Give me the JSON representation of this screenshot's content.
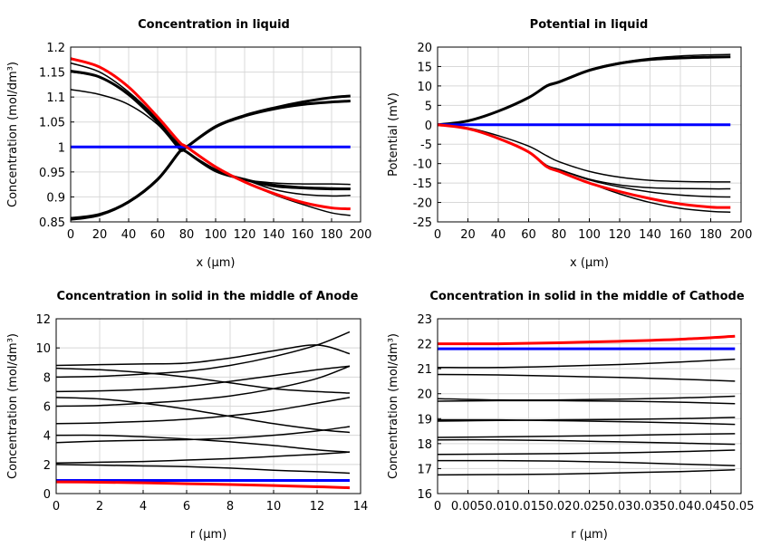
{
  "chart_data": [
    {
      "type": "line",
      "title": "Concentration in liquid",
      "xlabel": "x (µm)",
      "ylabel": "Concentration (mol/dm³)",
      "xlim": [
        0,
        200
      ],
      "ylim": [
        0.85,
        1.2
      ],
      "grid": true,
      "xticks": [
        "0",
        "20",
        "40",
        "60",
        "80",
        "100",
        "120",
        "140",
        "160",
        "180",
        "200"
      ],
      "yticks": [
        "0.85",
        "0.9",
        "0.95",
        "1",
        "1.05",
        "1.1",
        "1.15",
        "1.2"
      ],
      "x": [
        0,
        20,
        40,
        60,
        75,
        80,
        100,
        120,
        140,
        160,
        180,
        193
      ],
      "series": [
        {
          "color": "#000000",
          "values": [
            0.857,
            0.865,
            0.89,
            0.935,
            0.99,
            1.0,
            1.04,
            1.062,
            1.076,
            1.085,
            1.09,
            1.092
          ]
        },
        {
          "color": "#000000",
          "values": [
            0.855,
            0.864,
            0.89,
            0.935,
            0.99,
            1.0,
            1.041,
            1.063,
            1.078,
            1.09,
            1.099,
            1.102
          ]
        },
        {
          "color": "#000000",
          "values": [
            1.178,
            1.16,
            1.12,
            1.06,
            1.005,
            0.99,
            0.955,
            0.935,
            0.928,
            0.926,
            0.926,
            0.925
          ]
        },
        {
          "color": "#000000",
          "values": [
            1.168,
            1.15,
            1.11,
            1.055,
            1.0,
            0.99,
            0.955,
            0.935,
            0.925,
            0.92,
            0.918,
            0.917
          ]
        },
        {
          "color": "#000000",
          "values": [
            1.152,
            1.14,
            1.105,
            1.05,
            1.0,
            0.99,
            0.952,
            0.935,
            0.922,
            0.918,
            0.916,
            0.916
          ]
        },
        {
          "color": "#000000",
          "values": [
            1.115,
            1.105,
            1.085,
            1.045,
            0.995,
            0.99,
            0.955,
            0.935,
            0.915,
            0.905,
            0.902,
            0.903
          ]
        },
        {
          "color": "#000000",
          "values": [
            1.15,
            1.14,
            1.105,
            1.05,
            1.0,
            0.99,
            0.955,
            0.93,
            0.905,
            0.885,
            0.868,
            0.863
          ]
        },
        {
          "color": "#0000ff",
          "values": [
            1,
            1,
            1,
            1,
            1,
            1,
            1,
            1,
            1,
            1,
            1,
            1
          ]
        },
        {
          "color": "#ff0000",
          "values": [
            1.177,
            1.16,
            1.12,
            1.06,
            1.01,
            1.0,
            0.96,
            0.93,
            0.907,
            0.889,
            0.878,
            0.876
          ]
        }
      ]
    },
    {
      "type": "line",
      "title": "Potential in liquid",
      "xlabel": "x (µm)",
      "ylabel": "Potential (mV)",
      "xlim": [
        0,
        200
      ],
      "ylim": [
        -25,
        20
      ],
      "grid": true,
      "xticks": [
        "0",
        "20",
        "40",
        "60",
        "80",
        "100",
        "120",
        "140",
        "160",
        "180",
        "200"
      ],
      "yticks": [
        "-25",
        "-20",
        "-15",
        "-10",
        "-5",
        "0",
        "5",
        "10",
        "15",
        "20"
      ],
      "x": [
        0,
        20,
        40,
        60,
        72,
        80,
        100,
        120,
        140,
        160,
        180,
        193
      ],
      "series": [
        {
          "color": "#000000",
          "values": [
            0,
            1,
            3.5,
            7,
            10,
            11,
            14,
            15.8,
            16.8,
            17.2,
            17.4,
            17.5
          ]
        },
        {
          "color": "#000000",
          "values": [
            0,
            1,
            3.5,
            7,
            10.2,
            11.2,
            14.2,
            16,
            17.1,
            17.7,
            18,
            18.1
          ]
        },
        {
          "color": "#000000",
          "values": [
            0,
            -0.8,
            -2.8,
            -5.5,
            -8,
            -9.5,
            -12,
            -13.5,
            -14.3,
            -14.6,
            -14.7,
            -14.7
          ]
        },
        {
          "color": "#000000",
          "values": [
            0,
            -1,
            -3.5,
            -7,
            -10.5,
            -11.5,
            -14,
            -15.5,
            -16.2,
            -16.4,
            -16.5,
            -16.5
          ]
        },
        {
          "color": "#000000",
          "values": [
            0,
            -1,
            -3.5,
            -7,
            -10.5,
            -11.5,
            -14.2,
            -16,
            -17.3,
            -18.1,
            -18.5,
            -18.6
          ]
        },
        {
          "color": "#000000",
          "values": [
            0,
            -1,
            -3.5,
            -7,
            -10.5,
            -11.8,
            -15,
            -17.8,
            -20,
            -21.5,
            -22.3,
            -22.5
          ]
        },
        {
          "color": "#0000ff",
          "values": [
            0,
            0,
            0,
            0,
            0,
            0,
            0,
            0,
            0,
            0,
            0,
            0
          ]
        },
        {
          "color": "#ff0000",
          "values": [
            0,
            -1,
            -3.5,
            -7,
            -10.8,
            -12,
            -15,
            -17.2,
            -19,
            -20.4,
            -21.2,
            -21.3
          ]
        }
      ]
    },
    {
      "type": "line",
      "title": "Concentration in solid in the middle of Anode",
      "xlabel": "r (µm)",
      "ylabel": "Concentration (mol/dm³)",
      "xlim": [
        0,
        14
      ],
      "ylim": [
        0,
        12
      ],
      "grid": true,
      "xticks": [
        "0",
        "2",
        "4",
        "6",
        "8",
        "10",
        "12",
        "14"
      ],
      "yticks": [
        "0",
        "2",
        "4",
        "6",
        "8",
        "10",
        "12"
      ],
      "x": [
        0,
        2,
        4,
        6,
        8,
        10,
        12,
        13.5
      ],
      "series": [
        {
          "color": "#000000",
          "values": [
            8.8,
            8.85,
            8.9,
            8.95,
            9.3,
            9.8,
            10.2,
            9.6
          ]
        },
        {
          "color": "#000000",
          "values": [
            8.0,
            8.05,
            8.2,
            8.4,
            8.8,
            9.4,
            10.2,
            11.1
          ]
        },
        {
          "color": "#000000",
          "values": [
            8.6,
            8.5,
            8.3,
            8.0,
            7.6,
            7.2,
            7.0,
            6.9
          ]
        },
        {
          "color": "#000000",
          "values": [
            7.0,
            7.05,
            7.15,
            7.35,
            7.7,
            8.1,
            8.5,
            8.75
          ]
        },
        {
          "color": "#000000",
          "values": [
            6.6,
            6.5,
            6.2,
            5.8,
            5.3,
            4.8,
            4.4,
            4.2
          ]
        },
        {
          "color": "#000000",
          "values": [
            6.0,
            6.05,
            6.2,
            6.4,
            6.7,
            7.2,
            7.9,
            8.75
          ]
        },
        {
          "color": "#000000",
          "values": [
            4.8,
            4.85,
            4.95,
            5.1,
            5.35,
            5.7,
            6.2,
            6.6
          ]
        },
        {
          "color": "#000000",
          "values": [
            4.0,
            4.0,
            3.9,
            3.75,
            3.55,
            3.3,
            3.0,
            2.85
          ]
        },
        {
          "color": "#000000",
          "values": [
            3.5,
            3.6,
            3.65,
            3.7,
            3.8,
            4.0,
            4.3,
            4.6
          ]
        },
        {
          "color": "#000000",
          "values": [
            2.1,
            2.15,
            2.2,
            2.3,
            2.4,
            2.55,
            2.7,
            2.85
          ]
        },
        {
          "color": "#000000",
          "values": [
            2.0,
            1.95,
            1.9,
            1.85,
            1.75,
            1.6,
            1.5,
            1.4
          ]
        },
        {
          "color": "#0000ff",
          "values": [
            0.9,
            0.9,
            0.9,
            0.9,
            0.9,
            0.9,
            0.9,
            0.9
          ]
        },
        {
          "color": "#ff0000",
          "values": [
            0.8,
            0.78,
            0.74,
            0.68,
            0.62,
            0.55,
            0.47,
            0.4
          ]
        }
      ]
    },
    {
      "type": "line",
      "title": "Concentration in solid in the middle of Cathode",
      "xlabel": "r (µm)",
      "ylabel": "Concentration (mol/dm³)",
      "xlim": [
        0,
        0.05
      ],
      "ylim": [
        16,
        23
      ],
      "grid": true,
      "xticks": [
        "0",
        "0.005",
        "0.01",
        "0.015",
        "0.02",
        "0.025",
        "0.03",
        "0.035",
        "0.04",
        "0.045",
        "0.05"
      ],
      "yticks": [
        "16",
        "17",
        "18",
        "19",
        "20",
        "21",
        "22",
        "23"
      ],
      "x": [
        0,
        0.01,
        0.02,
        0.03,
        0.04,
        0.049
      ],
      "series": [
        {
          "color": "#000000",
          "values": [
            21.05,
            21.05,
            21.1,
            21.17,
            21.27,
            21.38
          ]
        },
        {
          "color": "#000000",
          "values": [
            20.77,
            20.75,
            20.7,
            20.65,
            20.58,
            20.5
          ]
        },
        {
          "color": "#000000",
          "values": [
            19.8,
            19.75,
            19.75,
            19.78,
            19.83,
            19.9
          ]
        },
        {
          "color": "#000000",
          "values": [
            19.7,
            19.72,
            19.72,
            19.7,
            19.66,
            19.6
          ]
        },
        {
          "color": "#000000",
          "values": [
            18.9,
            18.93,
            18.95,
            18.97,
            19.0,
            19.05
          ]
        },
        {
          "color": "#000000",
          "values": [
            18.95,
            18.95,
            18.92,
            18.88,
            18.83,
            18.77
          ]
        },
        {
          "color": "#000000",
          "values": [
            18.25,
            18.27,
            18.3,
            18.33,
            18.37,
            18.4
          ]
        },
        {
          "color": "#000000",
          "values": [
            18.15,
            18.15,
            18.12,
            18.07,
            18.02,
            17.97
          ]
        },
        {
          "color": "#000000",
          "values": [
            17.57,
            17.58,
            17.6,
            17.63,
            17.68,
            17.74
          ]
        },
        {
          "color": "#000000",
          "values": [
            17.32,
            17.32,
            17.3,
            17.25,
            17.18,
            17.12
          ]
        },
        {
          "color": "#000000",
          "values": [
            16.75,
            16.76,
            16.78,
            16.83,
            16.88,
            16.95
          ]
        },
        {
          "color": "#0000ff",
          "values": [
            21.8,
            21.8,
            21.8,
            21.8,
            21.8,
            21.8
          ]
        },
        {
          "color": "#ff0000",
          "values": [
            22.0,
            22.0,
            22.04,
            22.1,
            22.18,
            22.3
          ]
        }
      ]
    }
  ]
}
